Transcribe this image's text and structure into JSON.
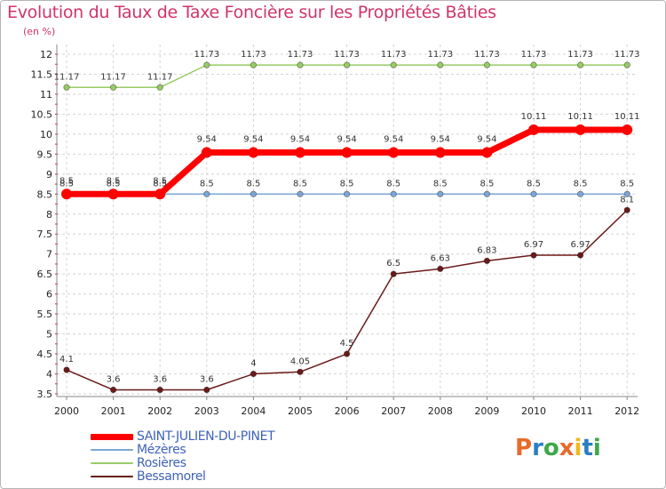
{
  "chart_data": {
    "type": "line",
    "title": "Evolution du Taux de Taxe Foncière sur les Propriétés Bâties",
    "subtitle": "(en %)",
    "xlabel": "",
    "ylabel": "(en %)",
    "categories": [
      "2000",
      "2001",
      "2002",
      "2003",
      "2004",
      "2005",
      "2006",
      "2007",
      "2008",
      "2009",
      "2010",
      "2011",
      "2012"
    ],
    "ylim": [
      3.5,
      12
    ],
    "yticks": [
      3.5,
      4,
      4.5,
      5,
      5.5,
      6,
      6.5,
      7,
      7.5,
      8,
      8.5,
      9,
      9.5,
      10,
      10.5,
      11,
      11.5,
      12
    ],
    "ytick_labels": [
      "3.5",
      "4",
      "4.5",
      "5",
      "5.5",
      "6",
      "6.5",
      "7",
      "7.5",
      "8",
      "8.5",
      "9",
      "9.5",
      "10",
      "10.5",
      "11",
      "11.5",
      "12"
    ],
    "grid": "horizontal dashed",
    "legend_position": "bottom-left",
    "series": [
      {
        "name": "SAINT-JULIEN-DU-PINET",
        "color": "#ff0000",
        "values": [
          8.5,
          8.5,
          8.5,
          9.54,
          9.54,
          9.54,
          9.54,
          9.54,
          9.54,
          9.54,
          10.11,
          10.11,
          10.11
        ],
        "labels": [
          "8.5",
          "8.5",
          "8.5",
          "9.54",
          "9.54",
          "9.54",
          "9.54",
          "9.54",
          "9.54",
          "9.54",
          "10.11",
          "10.11",
          "10.11"
        ]
      },
      {
        "name": "Mézères",
        "color": "#7ba7d6",
        "values": [
          8.5,
          8.5,
          8.5,
          8.5,
          8.5,
          8.5,
          8.5,
          8.5,
          8.5,
          8.5,
          8.5,
          8.5,
          8.5
        ],
        "labels": [
          "8.5",
          "8.5",
          "8.5",
          "8.5",
          "8.5",
          "8.5",
          "8.5",
          "8.5",
          "8.5",
          "8.5",
          "8.5",
          "8.5",
          "8.5"
        ]
      },
      {
        "name": "Rosières",
        "color": "#99cc66",
        "values": [
          11.17,
          11.17,
          11.17,
          11.73,
          11.73,
          11.73,
          11.73,
          11.73,
          11.73,
          11.73,
          11.73,
          11.73,
          11.73
        ],
        "labels": [
          "11.17",
          "11.17",
          "11.17",
          "11.73",
          "11.73",
          "11.73",
          "11.73",
          "11.73",
          "11.73",
          "11.73",
          "11.73",
          "11.73",
          "11.73"
        ]
      },
      {
        "name": "Bessamorel",
        "color": "#6b1a1a",
        "values": [
          4.1,
          3.6,
          3.6,
          3.6,
          4,
          4.05,
          4.5,
          6.5,
          6.63,
          6.83,
          6.97,
          6.97,
          8.1
        ],
        "labels": [
          "4.1",
          "3.6",
          "3.6",
          "3.6",
          "4",
          "4.05",
          "4.5",
          "6.5",
          "6.63",
          "6.83",
          "6.97",
          "6.97",
          "8.1"
        ]
      }
    ]
  },
  "logo": {
    "text": "Proxiti",
    "letters": [
      "P",
      "r",
      "o",
      "x",
      "i",
      "t",
      "i"
    ],
    "colors": [
      "#e8692a",
      "#2b7fc3",
      "#3da84a",
      "#e8692a",
      "#f2b91e",
      "#2b7fc3",
      "#3da84a"
    ]
  }
}
